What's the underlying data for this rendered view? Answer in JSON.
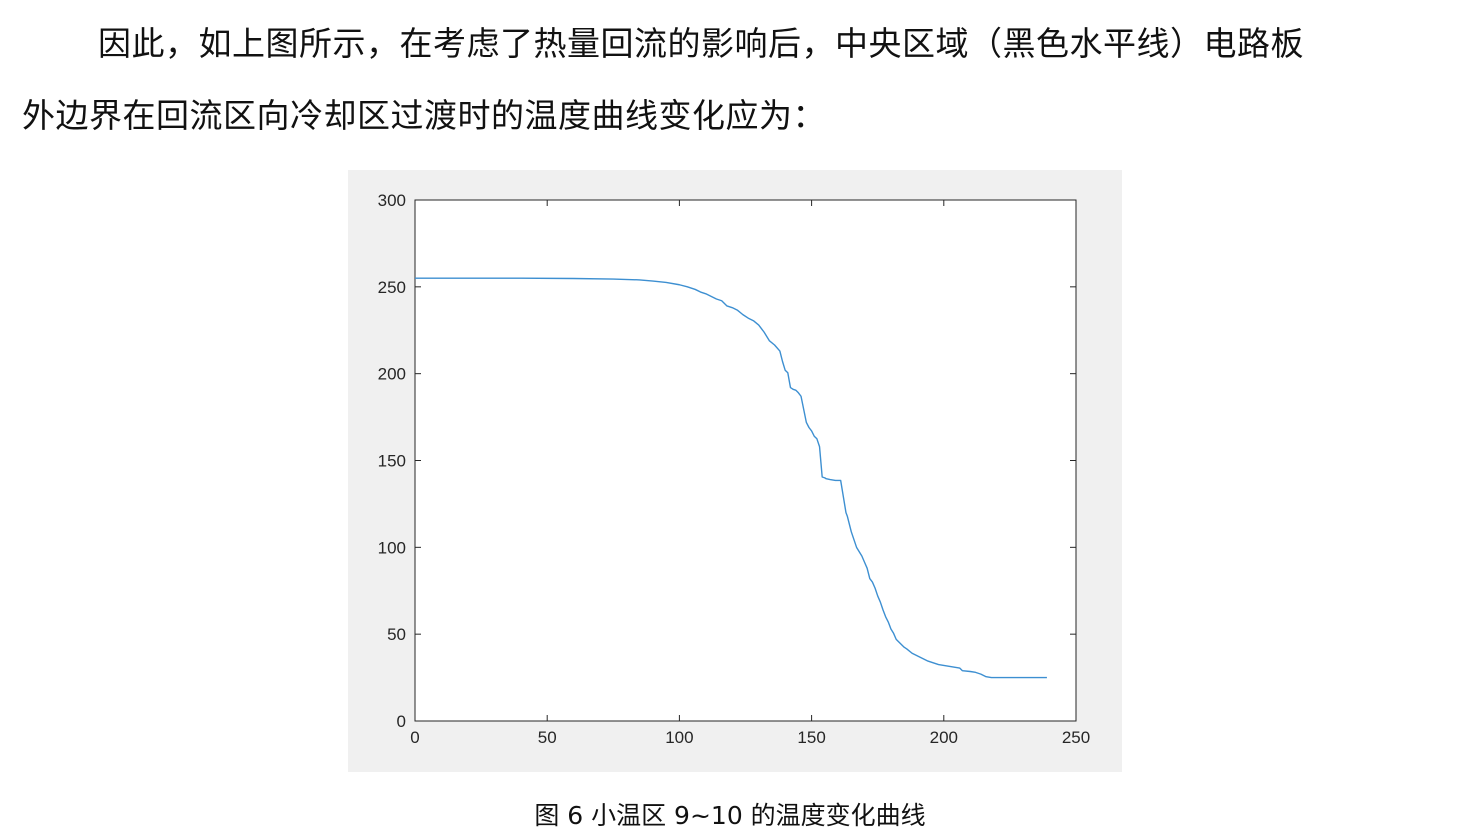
{
  "paragraph": {
    "line1": "因此，如上图所示，在考虑了热量回流的影响后，中央区域（黑色水平线）电路板",
    "line2": "外边界在回流区向冷却区过渡时的温度曲线变化应为："
  },
  "caption": "图 6 小温区 9~10 的温度变化曲线",
  "chart_data": {
    "type": "line",
    "title": "",
    "xlabel": "",
    "ylabel": "",
    "xlim": [
      0,
      250
    ],
    "ylim": [
      0,
      300
    ],
    "xticks": [
      "0",
      "50",
      "100",
      "150",
      "200",
      "250"
    ],
    "yticks": [
      "0",
      "50",
      "100",
      "150",
      "200",
      "250",
      "300"
    ],
    "grid": false,
    "line_color": "#3d8fd1",
    "series": [
      {
        "x": [
          0,
          20,
          40,
          60,
          75,
          85,
          90,
          95,
          100,
          103,
          106,
          108,
          110,
          112,
          114,
          116,
          118,
          120,
          122,
          124,
          126,
          128,
          130,
          132,
          134,
          136,
          138,
          139,
          140,
          141,
          142,
          143,
          144,
          145,
          146,
          148,
          149,
          150,
          151,
          152,
          153,
          154,
          155,
          155.5,
          157,
          159,
          161,
          163,
          163.5,
          165,
          167,
          169,
          170,
          171,
          172,
          173,
          174,
          175,
          176,
          177,
          178,
          179,
          180,
          181,
          182,
          183,
          184,
          185,
          186,
          188,
          190,
          192,
          194,
          196,
          198,
          200,
          202,
          204,
          206,
          207,
          210,
          212,
          214,
          216,
          218,
          220,
          225,
          230,
          235,
          239
        ],
        "y": [
          255,
          255,
          255,
          254.8,
          254.5,
          254,
          253.3,
          252.5,
          251.2,
          250,
          248.5,
          247,
          246,
          244.5,
          243,
          242,
          239,
          238,
          236.5,
          234,
          232,
          230.5,
          228,
          224,
          219,
          216.5,
          213,
          207,
          202,
          200.5,
          192,
          191,
          190.5,
          189,
          187,
          172,
          169,
          167,
          164,
          162.5,
          158,
          140.5,
          140,
          139.5,
          139,
          138.5,
          138.5,
          120,
          118,
          109,
          100,
          95,
          91.5,
          88,
          82,
          80,
          76.5,
          72,
          68.5,
          64,
          60,
          57,
          53,
          50.5,
          47,
          45.5,
          44,
          42.5,
          41.5,
          39,
          37.5,
          36,
          34.5,
          33.5,
          32.5,
          32,
          31.5,
          31,
          30.5,
          29,
          28.5,
          28,
          27,
          25.5,
          25,
          25,
          25,
          25,
          25,
          25
        ]
      }
    ]
  }
}
